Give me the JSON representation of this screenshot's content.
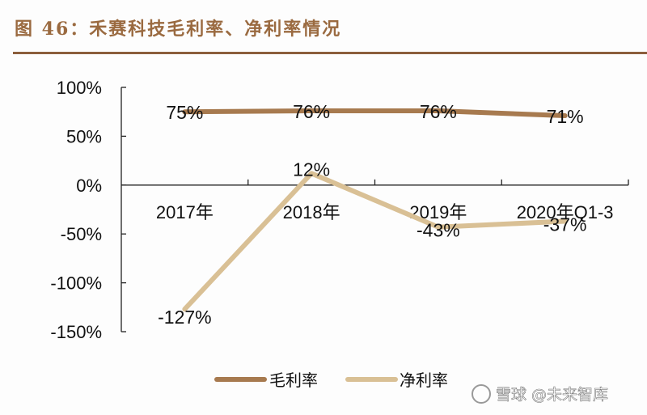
{
  "header": {
    "title": "图 46：禾赛科技毛利率、净利率情况"
  },
  "colors": {
    "gross_margin": "#a77a4f",
    "net_margin": "#d9c095",
    "title": "#9a6a40",
    "rule": "#8b5e3c"
  },
  "watermark": {
    "text": "雪球 @未来智库"
  },
  "legend": {
    "items": [
      {
        "label": "毛利率"
      },
      {
        "label": "净利率"
      }
    ]
  },
  "chart_data": {
    "type": "line",
    "title": "图 46：禾赛科技毛利率、净利率情况",
    "categories": [
      "2017年",
      "2018年",
      "2019年",
      "2020年Q1-3"
    ],
    "series": [
      {
        "name": "毛利率",
        "values": [
          75,
          76,
          76,
          71
        ],
        "labels": [
          "75%",
          "76%",
          "76%",
          "71%"
        ]
      },
      {
        "name": "净利率",
        "values": [
          -127,
          12,
          -43,
          -37
        ],
        "labels": [
          "-127%",
          "12%",
          "-43%",
          "-37%"
        ]
      }
    ],
    "xlabel": "",
    "ylabel": "",
    "ylim": [
      -150,
      100
    ],
    "yticks": [
      "100%",
      "50%",
      "0%",
      "-50%",
      "-100%",
      "-150%"
    ],
    "grid": false,
    "legend_position": "bottom"
  }
}
